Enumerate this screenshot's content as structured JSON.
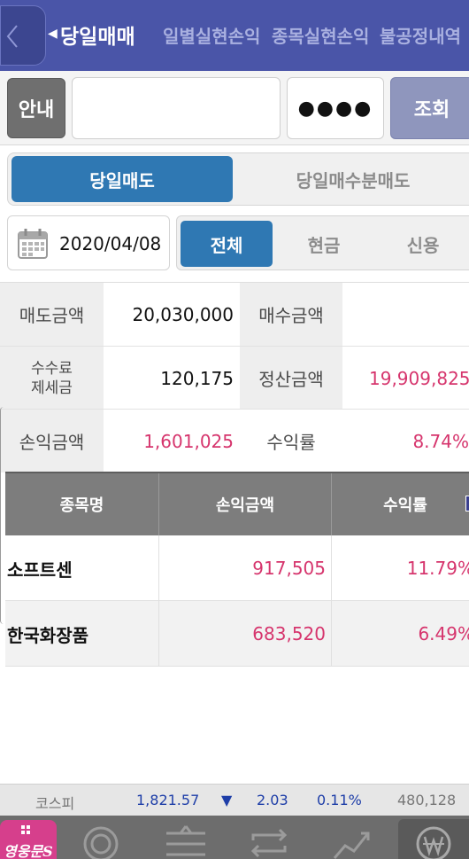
{
  "header": {
    "tabs": [
      {
        "label": "당일매매",
        "active": true
      },
      {
        "label": "일별실현손익",
        "active": false
      },
      {
        "label": "종목실현손익",
        "active": false
      },
      {
        "label": "불공정내역",
        "active": false
      }
    ]
  },
  "account": {
    "guide_label": "안내",
    "account_value": "",
    "password_mask": "●●●●",
    "query_label": "조회"
  },
  "segment": {
    "active": "당일매도",
    "other": "당일매수분매도"
  },
  "date": "2020/04/08",
  "filter": {
    "options": [
      "전체",
      "현금",
      "신용"
    ],
    "selected": "전체"
  },
  "summary": {
    "sell_amount_label": "매도금액",
    "sell_amount": "20,030,000",
    "buy_amount_label": "매수금액",
    "buy_amount": "",
    "fee_label_1": "수수료",
    "fee_label_2": "제세금",
    "fee_amount": "120,175",
    "settle_label": "정산금액",
    "settle_amount": "19,909,825",
    "pnl_label": "손익금액",
    "pnl_amount": "1,601,025",
    "return_label": "수익률",
    "return_rate": "8.74%"
  },
  "table": {
    "columns": [
      "종목명",
      "손익금액",
      "수익률"
    ],
    "rows": [
      {
        "name": "소프트센",
        "pnl": "917,505",
        "rate": "11.79%"
      },
      {
        "name": "한국화장품",
        "pnl": "683,520",
        "rate": "6.49%"
      }
    ]
  },
  "ticker": {
    "index_name": "코스피",
    "index_value": "1,821.57",
    "direction": "▼",
    "change": "2.03",
    "change_pct": "0.11%",
    "volume": "480,128"
  },
  "bottom_nav": {
    "brand": "영웅문S",
    "icons": [
      "chart-circle-icon",
      "order-icon",
      "transfer-icon",
      "trend-icon",
      "won-icon"
    ]
  },
  "colors": {
    "header_bg": "#4a55a8",
    "accent_blue": "#2f78b3",
    "profit_red": "#d6356d",
    "ticker_blue": "#1e3ea8",
    "brand_pink": "#d63f8c"
  }
}
